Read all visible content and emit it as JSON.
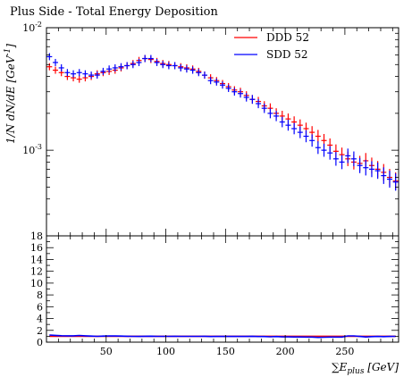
{
  "chart_data": {
    "type": "scatter",
    "title": "Plus Side - Total Energy Deposition",
    "xlabel": "∑E_plus [GeV]",
    "ylabel": "1/N dN/dE [GeV^-1]",
    "xlim": [
      0,
      295
    ],
    "main_panel": {
      "yscale": "log",
      "ylim": [
        0.0002,
        0.01
      ],
      "ytick_labels": [
        "10^-3",
        "10^-2"
      ],
      "series": [
        {
          "name": "DDD 52",
          "color": "#ff0000",
          "x": [
            2.5,
            7.5,
            12.5,
            17.5,
            22.5,
            27.5,
            32.5,
            37.5,
            42.5,
            47.5,
            52.5,
            57.5,
            62.5,
            67.5,
            72.5,
            77.5,
            82.5,
            87.5,
            92.5,
            97.5,
            102.5,
            107.5,
            112.5,
            117.5,
            122.5,
            127.5,
            132.5,
            137.5,
            142.5,
            147.5,
            152.5,
            157.5,
            162.5,
            167.5,
            172.5,
            177.5,
            182.5,
            187.5,
            192.5,
            197.5,
            202.5,
            207.5,
            212.5,
            217.5,
            222.5,
            227.5,
            232.5,
            237.5,
            242.5,
            247.5,
            252.5,
            257.5,
            262.5,
            267.5,
            272.5,
            277.5,
            282.5,
            287.5,
            292.5
          ],
          "y": [
            0.0048,
            0.0045,
            0.0043,
            0.004,
            0.0039,
            0.0038,
            0.0039,
            0.004,
            0.0042,
            0.0043,
            0.0044,
            0.0045,
            0.0047,
            0.0049,
            0.0051,
            0.0054,
            0.0056,
            0.0055,
            0.0053,
            0.0051,
            0.005,
            0.0049,
            0.0048,
            0.0047,
            0.0046,
            0.0044,
            0.0041,
            0.0039,
            0.0037,
            0.0035,
            0.0033,
            0.0031,
            0.003,
            0.0028,
            0.0026,
            0.0025,
            0.0023,
            0.0022,
            0.002,
            0.0019,
            0.0018,
            0.0017,
            0.0016,
            0.0015,
            0.0014,
            0.0013,
            0.0012,
            0.0011,
            0.00098,
            0.00092,
            0.00085,
            0.0008,
            0.00078,
            0.00082,
            0.00075,
            0.0007,
            0.00066,
            0.0006,
            0.00056
          ]
        },
        {
          "name": "SDD 52",
          "color": "#0000ff",
          "x": [
            2.5,
            7.5,
            12.5,
            17.5,
            22.5,
            27.5,
            32.5,
            37.5,
            42.5,
            47.5,
            52.5,
            57.5,
            62.5,
            67.5,
            72.5,
            77.5,
            82.5,
            87.5,
            92.5,
            97.5,
            102.5,
            107.5,
            112.5,
            117.5,
            122.5,
            127.5,
            132.5,
            137.5,
            142.5,
            147.5,
            152.5,
            157.5,
            162.5,
            167.5,
            172.5,
            177.5,
            182.5,
            187.5,
            192.5,
            197.5,
            202.5,
            207.5,
            212.5,
            217.5,
            222.5,
            227.5,
            232.5,
            237.5,
            242.5,
            247.5,
            252.5,
            257.5,
            262.5,
            267.5,
            272.5,
            277.5,
            282.5,
            287.5,
            292.5
          ],
          "y": [
            0.0058,
            0.0052,
            0.0047,
            0.0043,
            0.0042,
            0.0043,
            0.0042,
            0.0041,
            0.0041,
            0.0044,
            0.0046,
            0.0047,
            0.0048,
            0.0049,
            0.005,
            0.0052,
            0.0056,
            0.0056,
            0.0052,
            0.005,
            0.0049,
            0.0049,
            0.0047,
            0.0046,
            0.0045,
            0.0043,
            0.0041,
            0.0037,
            0.0036,
            0.0034,
            0.0032,
            0.003,
            0.0029,
            0.0027,
            0.0026,
            0.0024,
            0.0022,
            0.002,
            0.0019,
            0.0017,
            0.0016,
            0.0015,
            0.0014,
            0.0013,
            0.0012,
            0.00105,
            0.001,
            0.00095,
            0.00085,
            0.0008,
            0.0009,
            0.00085,
            0.00075,
            0.00072,
            0.0007,
            0.00068,
            0.00062,
            0.00058,
            0.00055
          ]
        }
      ]
    },
    "ratio_panel": {
      "ylim": [
        0,
        18
      ],
      "ytick_labels": [
        "0",
        "2",
        "4",
        "6",
        "8",
        "10",
        "12",
        "14",
        "16",
        "18"
      ],
      "reference_value": 1
    },
    "xtick_labels": [
      "50",
      "100",
      "150",
      "200",
      "250"
    ],
    "legend_position": "top-right",
    "grid": false
  }
}
